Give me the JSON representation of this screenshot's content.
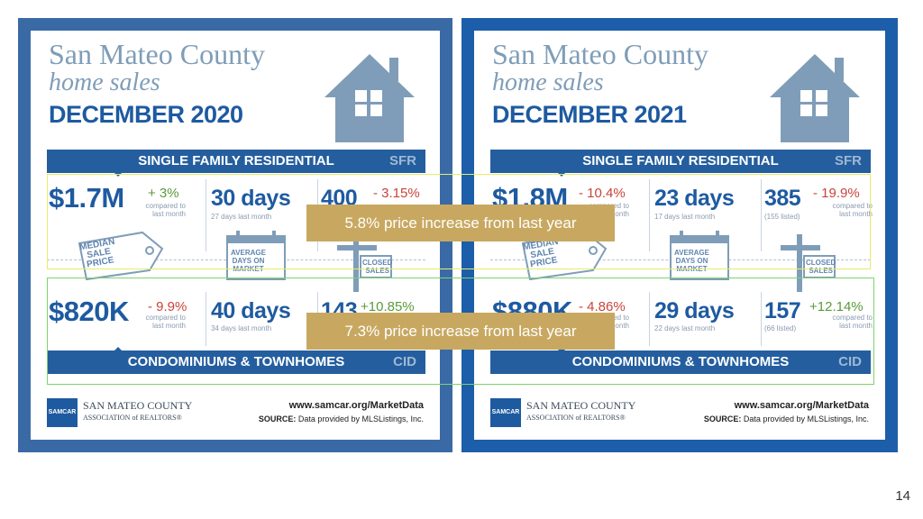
{
  "infographics": [
    {
      "title_line1": "San Mateo County",
      "title_line2": "home sales",
      "title_line3": "DECEMBER 2020",
      "sfr_band": "SINGLE FAMILY RESIDENTIAL",
      "sfr_code": "SFR",
      "cid_band": "CONDOMINIUMS & TOWNHOMES",
      "cid_code": "CID",
      "sfr": {
        "price": "$1.7M",
        "price_change": "+ 3%",
        "price_note_1": "compared to",
        "price_note_2": "last month",
        "days": "30 days",
        "days_note": "27 days last month",
        "sales": "400",
        "sales_change": "- 3.15%"
      },
      "cid": {
        "price": "$820K",
        "price_change": "- 9.9%",
        "price_note_1": "compared to",
        "price_note_2": "last month",
        "days": "40 days",
        "days_note": "34 days last month",
        "sales": "143",
        "sales_change": "+10.85%"
      },
      "tag_median": "MEDIAN\nSALE\nPRICE",
      "tag_days": "AVERAGE\nDAYS ON\nMARKET",
      "tag_closed": "CLOSED\nSALES",
      "org_logo": "SAMCAR",
      "org_line1": "SAN MATEO COUNTY",
      "org_line2": "ASSOCIATION of REALTORS®",
      "url": "www.samcar.org/MarketData",
      "source_label": "SOURCE:",
      "source_text": "Data provided by MLSListings, Inc."
    },
    {
      "title_line1": "San Mateo County",
      "title_line2": "home sales",
      "title_line3": "DECEMBER 2021",
      "sfr_band": "SINGLE FAMILY RESIDENTIAL",
      "sfr_code": "SFR",
      "cid_band": "CONDOMINIUMS & TOWNHOMES",
      "cid_code": "CID",
      "sfr": {
        "price": "$1.8M",
        "price_change": "- 10.4%",
        "price_note_1": "compared to",
        "price_note_2": "last month",
        "days": "23 days",
        "days_note": "17 days last month",
        "sales": "385",
        "sales_change": "- 19.9%",
        "sales_listed": "(155 listed)",
        "sales_note_1": "compared to",
        "sales_note_2": "last month"
      },
      "cid": {
        "price": "$880K",
        "price_change": "- 4.86%",
        "price_note_1": "compared to",
        "price_note_2": "last month",
        "days": "29 days",
        "days_note": "22 days last month",
        "sales": "157",
        "sales_change": "+12.14%",
        "sales_listed": "(66 listed)",
        "sales_note_1": "compared to",
        "sales_note_2": "last month"
      },
      "tag_median": "MEDIAN\nSALE\nPRICE",
      "tag_days": "AVERAGE\nDAYS ON\nMARKET",
      "tag_closed": "CLOSED\nSALES",
      "org_logo": "SAMCAR",
      "org_line1": "SAN MATEO COUNTY",
      "org_line2": "ASSOCIATION of REALTORS®",
      "url": "www.samcar.org/MarketData",
      "source_label": "SOURCE:",
      "source_text": "Data provided by MLSListings, Inc."
    }
  ],
  "annotations": {
    "sfr_banner": "5.8% price increase from last year",
    "cid_banner": "7.3% price increase from last year"
  },
  "page_number": "14",
  "colors": {
    "panel_left": "#3a6aa5",
    "panel_right": "#1c5ea9",
    "band": "#245e9e",
    "banner": "#c8a860",
    "highlight_yellow": "#e8ec6a",
    "highlight_green": "#7ed36c"
  }
}
